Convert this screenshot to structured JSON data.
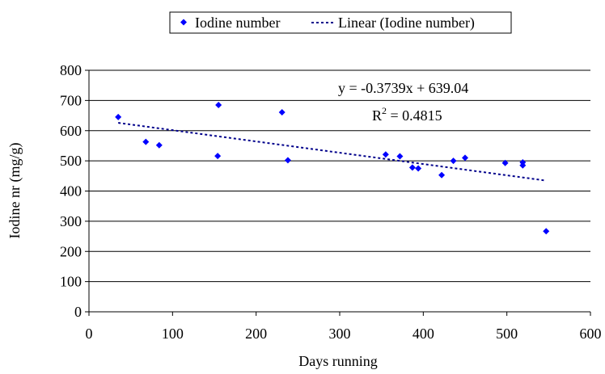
{
  "chart_data": {
    "type": "scatter",
    "xlabel": "Days running",
    "ylabel": "Iodine nr (mg/g)",
    "xlim": [
      0,
      600
    ],
    "ylim": [
      0,
      800
    ],
    "x_ticks": [
      0,
      100,
      200,
      300,
      400,
      500,
      600
    ],
    "y_ticks": [
      0,
      100,
      200,
      300,
      400,
      500,
      600,
      700,
      800
    ],
    "grid": "horizontal",
    "legend_position": "top-center",
    "colors": {
      "points": "#0000ff",
      "trendline": "#00008b",
      "grid": "#000000"
    },
    "series": [
      {
        "name": "Iodine number",
        "marker": "diamond",
        "x": [
          35,
          68,
          84,
          154,
          155,
          231,
          238,
          355,
          372,
          387,
          394,
          422,
          436,
          450,
          498,
          519,
          519,
          547
        ],
        "y": [
          645,
          563,
          552,
          516,
          685,
          661,
          502,
          521,
          515,
          478,
          475,
          453,
          500,
          510,
          493,
          495,
          485,
          267
        ]
      }
    ],
    "trendline": {
      "name": "Linear (Iodine number)",
      "slope": -0.3739,
      "intercept": 639.04,
      "x_range": [
        35,
        547
      ],
      "equation_label": "y = -0.3739x + 639.04",
      "r2_prefix": "R",
      "r2_exponent": "2",
      "r2_suffix": " = 0.4815"
    }
  }
}
